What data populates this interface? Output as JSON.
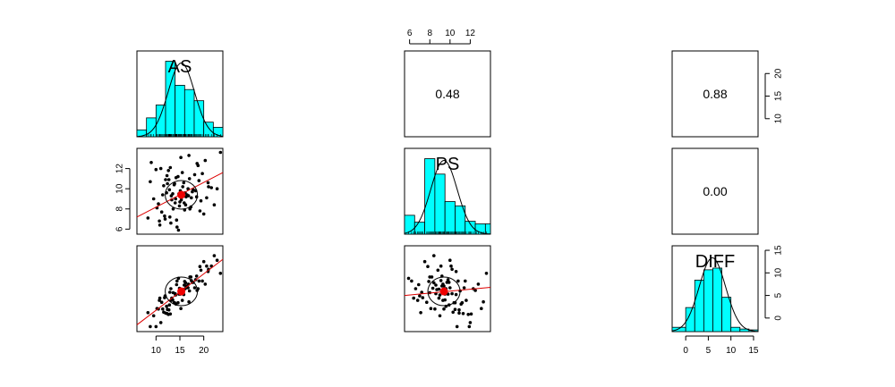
{
  "chart_data": {
    "type": "scatter-matrix",
    "variables": [
      "AS",
      "PS",
      "DIFF"
    ],
    "axes": {
      "AS": {
        "range": [
          6,
          24
        ],
        "ticks": [
          "10",
          "15",
          "20"
        ]
      },
      "PS": {
        "range": [
          5.5,
          14
        ],
        "ticks": [
          "6",
          "8",
          "10",
          "12"
        ]
      },
      "DIFF": {
        "range": [
          -3,
          16
        ],
        "ticks": [
          "0",
          "5",
          "10",
          "15"
        ]
      },
      "AS_top_right_ticks": {
        "range": [
          6,
          25
        ],
        "ticks": [
          "10",
          "15",
          "20"
        ]
      }
    },
    "correlations": [
      {
        "pair": [
          "AS",
          "PS"
        ],
        "label": "0.48"
      },
      {
        "pair": [
          "AS",
          "DIFF"
        ],
        "label": "0.88"
      },
      {
        "pair": [
          "PS",
          "DIFF"
        ],
        "label": "0.00"
      }
    ],
    "histograms": {
      "AS": {
        "breaks": [
          6,
          8,
          10,
          12,
          14,
          16,
          18,
          20,
          22,
          24
        ],
        "heights": [
          0.08,
          0.22,
          0.37,
          0.88,
          0.6,
          0.55,
          0.42,
          0.17,
          0.11
        ]
      },
      "PS": {
        "breaks": [
          5.5,
          6.5,
          7.5,
          8.5,
          9.5,
          10.5,
          11.5,
          12.5,
          13.5,
          14
        ],
        "heights": [
          0.22,
          0.14,
          0.88,
          0.7,
          0.38,
          0.33,
          0.15,
          0.12,
          0.12
        ]
      },
      "DIFF": {
        "breaks": [
          -3,
          0,
          2,
          4,
          6,
          8,
          10,
          12,
          14,
          16
        ],
        "heights": [
          0.05,
          0.28,
          0.6,
          0.72,
          0.74,
          0.4,
          0.05,
          0.03,
          0.02
        ]
      }
    },
    "means": {
      "AS": 15.3,
      "PS": 9.4,
      "DIFF": 5.9
    },
    "regression": {
      "PS_on_AS": {
        "x": [
          6,
          24
        ],
        "y": [
          7.2,
          11.6
        ]
      },
      "DIFF_on_AS": {
        "x": [
          6,
          24
        ],
        "y": [
          -1.5,
          13.0
        ]
      },
      "DIFF_on_PS": {
        "x": [
          5.5,
          14
        ],
        "y": [
          5.0,
          6.8
        ]
      }
    },
    "scatter": {
      "AS": [
        18.5,
        10.2,
        12.4,
        15.1,
        14.3,
        17.0,
        16.2,
        9.5,
        11.2,
        21.0,
        13.0,
        14.8,
        19.4,
        8.3,
        12.0,
        16.8,
        15.5,
        13.6,
        10.8,
        22.8,
        17.6,
        11.6,
        14.0,
        18.1,
        12.8,
        20.0,
        15.8,
        13.3,
        9.0,
        16.5,
        19.0,
        11.8,
        14.6,
        17.3,
        12.2,
        15.2,
        20.6,
        13.8,
        10.5,
        18.8,
        14.1,
        16.0,
        12.6,
        21.6,
        15.0,
        17.8,
        11.0,
        13.1,
        19.7,
        16.3,
        8.8,
        14.9,
        12.9,
        18.3,
        15.6,
        10.0,
        17.1,
        13.5,
        20.3,
        14.4,
        16.7,
        11.4,
        23.5,
        15.9,
        12.3,
        19.2,
        13.9,
        17.4,
        10.7,
        14.2,
        16.1,
        22.2,
        12.7,
        18.6,
        15.3,
        13.2,
        11.9,
        20.9,
        16.9,
        14.7
      ],
      "PS": [
        9.2,
        8.1,
        10.5,
        9.8,
        6.9,
        11.0,
        8.4,
        9.0,
        7.7,
        10.2,
        12.1,
        9.5,
        8.8,
        7.1,
        10.9,
        9.3,
        11.6,
        8.0,
        6.4,
        10.0,
        9.7,
        10.3,
        8.6,
        11.4,
        9.9,
        7.5,
        10.6,
        8.9,
        12.6,
        9.4,
        10.8,
        7.3,
        11.2,
        8.2,
        9.6,
        13.1,
        9.1,
        10.4,
        8.5,
        12.3,
        9.0,
        7.9,
        11.8,
        10.1,
        8.7,
        9.9,
        12.0,
        6.6,
        11.5,
        9.2,
        10.7,
        8.3,
        7.2,
        9.8,
        10.2,
        11.9,
        8.0,
        9.5,
        12.8,
        6.2,
        10.0,
        9.4,
        13.6,
        8.6,
        11.3,
        7.8,
        10.5,
        9.1,
        6.8,
        11.1,
        9.6,
        8.4,
        10.9,
        12.5,
        8.9,
        9.3,
        7.0,
        10.6,
        13.3,
        5.9
      ]
    }
  }
}
